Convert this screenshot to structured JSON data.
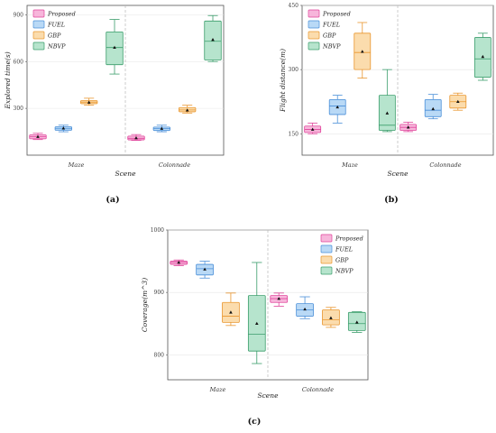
{
  "colors": {
    "Proposed": {
      "fill": "#f7b6db",
      "stroke": "#e0449b"
    },
    "FUEL": {
      "fill": "#b9d9f6",
      "stroke": "#4a8fd8"
    },
    "GBP": {
      "fill": "#fbdcad",
      "stroke": "#e9962e"
    },
    "NBVP": {
      "fill": "#b6e4cd",
      "stroke": "#3a9d6b"
    }
  },
  "chart_data": [
    {
      "type": "box",
      "panel": "(a)",
      "xlabel": "Scene",
      "ylabel": "Explored time(s)",
      "ylim": [
        0,
        960
      ],
      "yticks": [
        "300",
        "600",
        "900"
      ],
      "categories": [
        "Maze",
        "Colonnade"
      ],
      "legend": [
        "Proposed",
        "FUEL",
        "GBP",
        "NBVP"
      ],
      "legend_position": "top-left",
      "series": [
        {
          "name": "Proposed",
          "boxes": [
            {
              "min": 100,
              "q1": 105,
              "median": 118,
              "q3": 130,
              "max": 140,
              "mean": 118
            },
            {
              "min": 95,
              "q1": 98,
              "median": 108,
              "q3": 122,
              "max": 132,
              "mean": 110
            }
          ]
        },
        {
          "name": "FUEL",
          "boxes": [
            {
              "min": 150,
              "q1": 160,
              "median": 172,
              "q3": 182,
              "max": 192,
              "mean": 172
            },
            {
              "min": 150,
              "q1": 158,
              "median": 170,
              "q3": 180,
              "max": 192,
              "mean": 170
            }
          ]
        },
        {
          "name": "GBP",
          "boxes": [
            {
              "min": 320,
              "q1": 330,
              "median": 340,
              "q3": 350,
              "max": 365,
              "mean": 338
            },
            {
              "min": 270,
              "q1": 278,
              "median": 290,
              "q3": 305,
              "max": 320,
              "mean": 288
            }
          ]
        },
        {
          "name": "NBVP",
          "boxes": [
            {
              "min": 520,
              "q1": 580,
              "median": 690,
              "q3": 790,
              "max": 870,
              "mean": 690
            },
            {
              "min": 600,
              "q1": 610,
              "median": 730,
              "q3": 860,
              "max": 895,
              "mean": 740
            }
          ]
        }
      ]
    },
    {
      "type": "box",
      "panel": "(b)",
      "xlabel": "Scene",
      "ylabel": "Flight distance(m)",
      "ylim": [
        100,
        450
      ],
      "yticks": [
        "150",
        "300",
        "450"
      ],
      "categories": [
        "Maze",
        "Colonnade"
      ],
      "legend": [
        "Proposed",
        "FUEL",
        "GBP",
        "NBVP"
      ],
      "legend_position": "top-left",
      "series": [
        {
          "name": "Proposed",
          "boxes": [
            {
              "min": 150,
              "q1": 153,
              "median": 160,
              "q3": 168,
              "max": 175,
              "mean": 160
            },
            {
              "min": 155,
              "q1": 158,
              "median": 165,
              "q3": 172,
              "max": 177,
              "mean": 165
            }
          ]
        },
        {
          "name": "FUEL",
          "boxes": [
            {
              "min": 175,
              "q1": 195,
              "median": 215,
              "q3": 230,
              "max": 240,
              "mean": 212
            },
            {
              "min": 185,
              "q1": 190,
              "median": 205,
              "q3": 230,
              "max": 242,
              "mean": 208
            }
          ]
        },
        {
          "name": "GBP",
          "boxes": [
            {
              "min": 280,
              "q1": 300,
              "median": 340,
              "q3": 385,
              "max": 410,
              "mean": 342
            },
            {
              "min": 205,
              "q1": 210,
              "median": 225,
              "q3": 240,
              "max": 245,
              "mean": 225
            }
          ]
        },
        {
          "name": "NBVP",
          "boxes": [
            {
              "min": 155,
              "q1": 158,
              "median": 170,
              "q3": 240,
              "max": 300,
              "mean": 198
            },
            {
              "min": 275,
              "q1": 282,
              "median": 325,
              "q3": 375,
              "max": 385,
              "mean": 330
            }
          ]
        }
      ]
    },
    {
      "type": "box",
      "panel": "(c)",
      "xlabel": "Scene",
      "ylabel": "Coverage(m^3)",
      "ylim": [
        760,
        1000
      ],
      "yticks": [
        "800",
        "900",
        "1000"
      ],
      "categories": [
        "Maze",
        "Colonnade"
      ],
      "legend": [
        "Proposed",
        "FUEL",
        "GBP",
        "NBVP"
      ],
      "legend_position": "top-right",
      "series": [
        {
          "name": "Proposed",
          "boxes": [
            {
              "min": 943,
              "q1": 945,
              "median": 948,
              "q3": 950,
              "max": 952,
              "mean": 948
            },
            {
              "min": 878,
              "q1": 884,
              "median": 890,
              "q3": 895,
              "max": 899,
              "mean": 890
            }
          ]
        },
        {
          "name": "FUEL",
          "boxes": [
            {
              "min": 923,
              "q1": 928,
              "median": 938,
              "q3": 945,
              "max": 950,
              "mean": 937
            },
            {
              "min": 858,
              "q1": 862,
              "median": 872,
              "q3": 882,
              "max": 893,
              "mean": 873
            }
          ]
        },
        {
          "name": "GBP",
          "boxes": [
            {
              "min": 847,
              "q1": 852,
              "median": 862,
              "q3": 884,
              "max": 899,
              "mean": 868
            },
            {
              "min": 844,
              "q1": 848,
              "median": 856,
              "q3": 872,
              "max": 876,
              "mean": 859
            }
          ]
        },
        {
          "name": "NBVP",
          "boxes": [
            {
              "min": 786,
              "q1": 806,
              "median": 833,
              "q3": 895,
              "max": 948,
              "mean": 850
            },
            {
              "min": 836,
              "q1": 839,
              "median": 850,
              "q3": 868,
              "max": 869,
              "mean": 852
            }
          ]
        }
      ]
    }
  ]
}
